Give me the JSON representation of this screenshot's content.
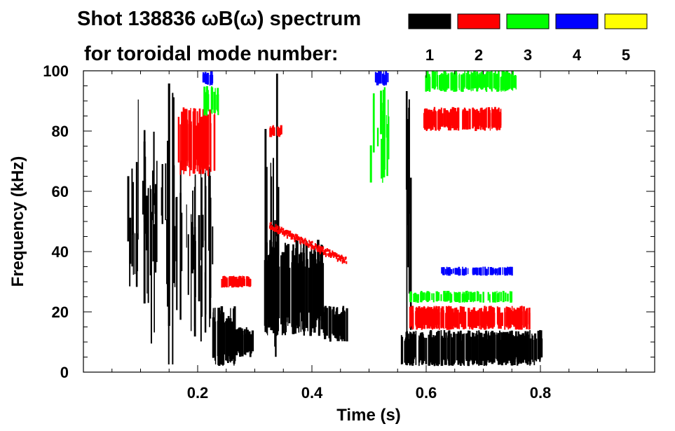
{
  "chart_data": {
    "type": "heatmap",
    "title_line1": "Shot 138836 ωB(ω) spectrum",
    "title_line2": "for toroidal mode number:",
    "xlabel": "Time (s)",
    "ylabel": "Frequency (kHz)",
    "xlim": [
      0.0,
      1.0
    ],
    "ylim": [
      0,
      100
    ],
    "x_ticks": [
      0.2,
      0.4,
      0.6,
      0.8
    ],
    "x_tick_labels": [
      "0.2",
      "0.4",
      "0.6",
      "0.8"
    ],
    "y_ticks": [
      0,
      20,
      40,
      60,
      80,
      100
    ],
    "y_tick_labels": [
      "0",
      "20",
      "40",
      "60",
      "80",
      "100"
    ],
    "legend": [
      {
        "label": "1",
        "color": "#000000"
      },
      {
        "label": "2",
        "color": "#ff0000"
      },
      {
        "label": "3",
        "color": "#00ff00"
      },
      {
        "label": "4",
        "color": "#0000ff"
      },
      {
        "label": "5",
        "color": "#ffff00"
      }
    ],
    "regions": [
      {
        "n": 1,
        "t0": 0.075,
        "t1": 0.145,
        "f0": 28,
        "f1": 72,
        "density": 0.45,
        "kind": "streaks"
      },
      {
        "n": 1,
        "t0": 0.095,
        "t1": 0.165,
        "f0": 2,
        "f1": 100,
        "density": 0.25,
        "kind": "streaks"
      },
      {
        "n": 1,
        "t0": 0.155,
        "t1": 0.225,
        "f0": 10,
        "f1": 72,
        "density": 0.6,
        "kind": "streaks"
      },
      {
        "n": 1,
        "t0": 0.225,
        "t1": 0.265,
        "f0": 2,
        "f1": 22,
        "density": 0.9,
        "kind": "blob"
      },
      {
        "n": 1,
        "t0": 0.265,
        "t1": 0.295,
        "f0": 5,
        "f1": 15,
        "density": 0.7,
        "kind": "blob"
      },
      {
        "n": 1,
        "t0": 0.315,
        "t1": 0.345,
        "f0": 5,
        "f1": 100,
        "density": 0.3,
        "kind": "streaks"
      },
      {
        "n": 1,
        "t0": 0.315,
        "t1": 0.42,
        "f0": 12,
        "f1": 44,
        "density": 0.85,
        "kind": "blob"
      },
      {
        "n": 1,
        "t0": 0.42,
        "t1": 0.46,
        "f0": 10,
        "f1": 22,
        "density": 0.8,
        "kind": "blob"
      },
      {
        "n": 1,
        "t0": 0.555,
        "t1": 0.8,
        "f0": 2,
        "f1": 14,
        "density": 0.95,
        "kind": "blob"
      },
      {
        "n": 1,
        "t0": 0.56,
        "t1": 0.575,
        "f0": 2,
        "f1": 100,
        "density": 0.4,
        "kind": "streaks"
      },
      {
        "n": 2,
        "t0": 0.24,
        "t1": 0.29,
        "f0": 28,
        "f1": 32,
        "density": 0.8,
        "kind": "blob"
      },
      {
        "n": 2,
        "t0": 0.165,
        "t1": 0.23,
        "f0": 65,
        "f1": 88,
        "density": 0.75,
        "kind": "blob"
      },
      {
        "n": 2,
        "t0": 0.325,
        "t1": 0.46,
        "f0": 36,
        "f1": 48,
        "density": 0.6,
        "kind": "slope"
      },
      {
        "n": 2,
        "t0": 0.57,
        "t1": 0.78,
        "f0": 14,
        "f1": 22,
        "density": 0.9,
        "kind": "blob"
      },
      {
        "n": 2,
        "t0": 0.595,
        "t1": 0.73,
        "f0": 80,
        "f1": 88,
        "density": 0.8,
        "kind": "blob"
      },
      {
        "n": 2,
        "t0": 0.325,
        "t1": 0.345,
        "f0": 78,
        "f1": 82,
        "density": 0.7,
        "kind": "blob"
      },
      {
        "n": 3,
        "t0": 0.595,
        "t1": 0.76,
        "f0": 93,
        "f1": 100,
        "density": 0.75,
        "kind": "blob"
      },
      {
        "n": 3,
        "t0": 0.5,
        "t1": 0.54,
        "f0": 60,
        "f1": 95,
        "density": 0.5,
        "kind": "streaks"
      },
      {
        "n": 3,
        "t0": 0.21,
        "t1": 0.235,
        "f0": 85,
        "f1": 95,
        "density": 0.5,
        "kind": "blob"
      },
      {
        "n": 3,
        "t0": 0.57,
        "t1": 0.75,
        "f0": 23,
        "f1": 27,
        "density": 0.5,
        "kind": "blob"
      },
      {
        "n": 4,
        "t0": 0.625,
        "t1": 0.75,
        "f0": 32,
        "f1": 35,
        "density": 0.6,
        "kind": "blob"
      },
      {
        "n": 4,
        "t0": 0.51,
        "t1": 0.535,
        "f0": 95,
        "f1": 100,
        "density": 0.6,
        "kind": "blob"
      },
      {
        "n": 4,
        "t0": 0.205,
        "t1": 0.225,
        "f0": 95,
        "f1": 100,
        "density": 0.5,
        "kind": "blob"
      }
    ]
  }
}
